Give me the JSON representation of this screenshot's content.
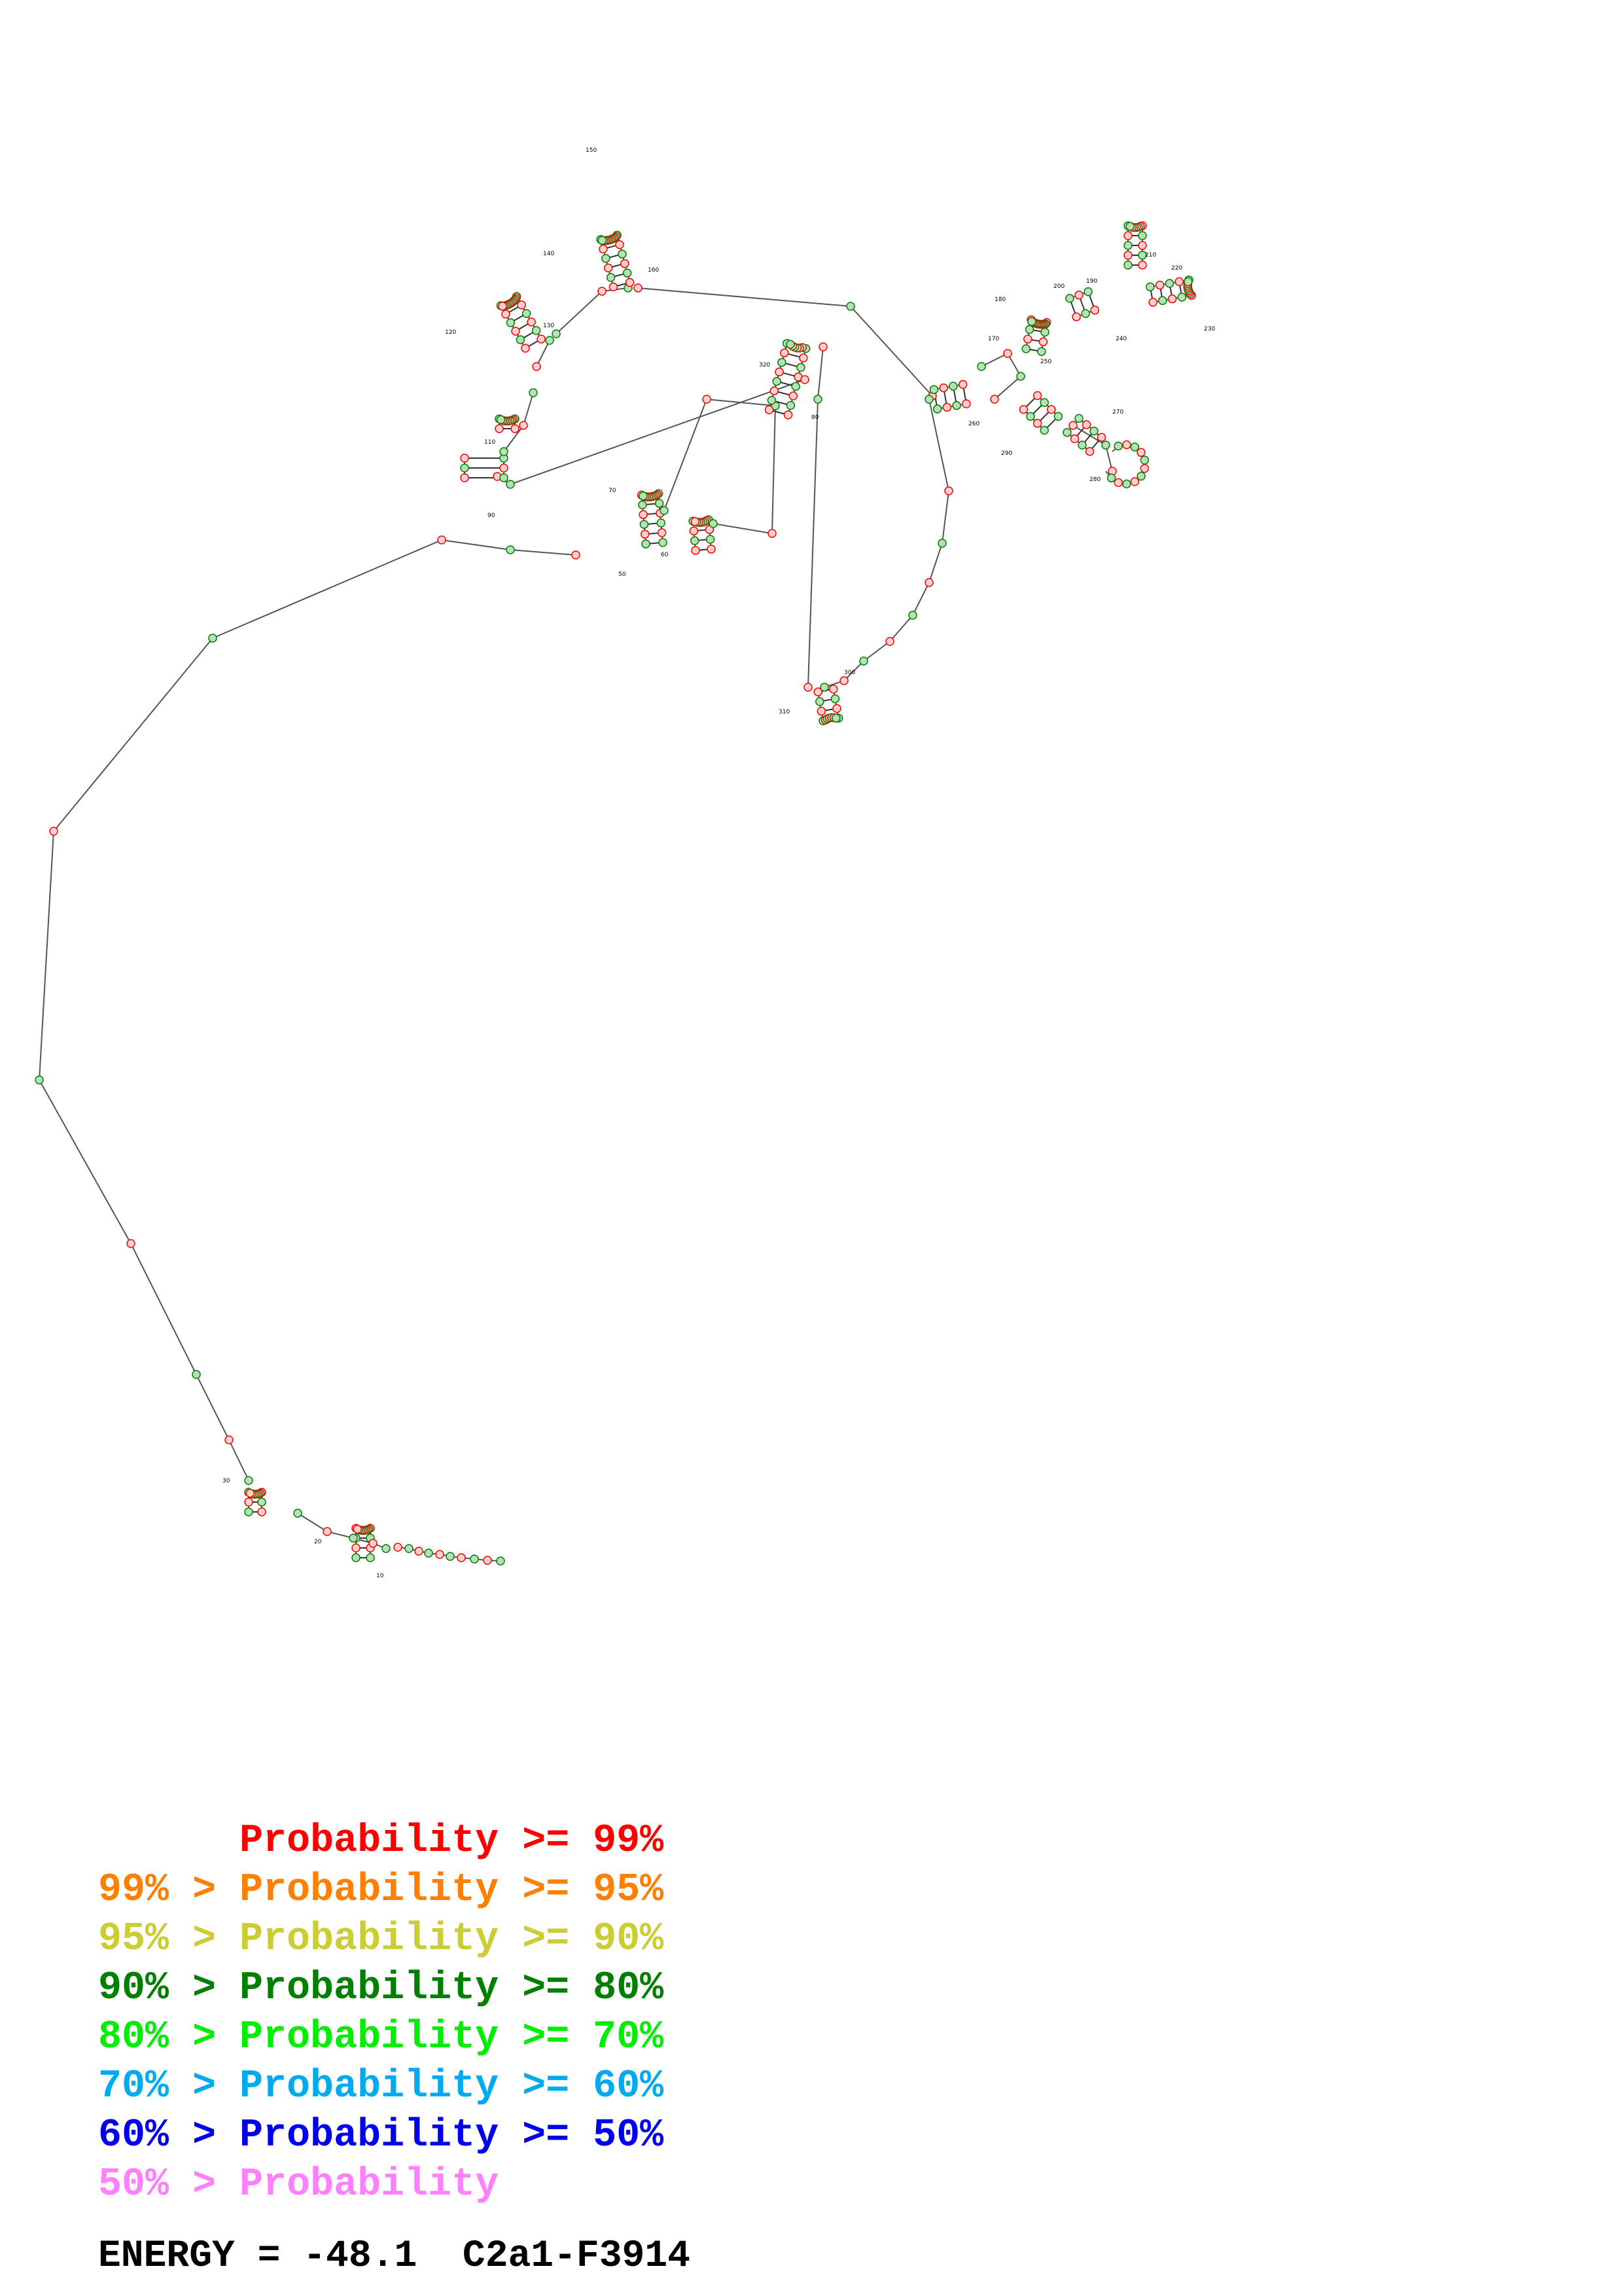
{
  "legend": [
    {
      "text": "      Probability >= 99%",
      "color": "#ff0000"
    },
    {
      "text": "99% > Probability >= 95%",
      "color": "#ff8000"
    },
    {
      "text": "95% > Probability >= 90%",
      "color": "#cccc33"
    },
    {
      "text": "90% > Probability >= 80%",
      "color": "#008000"
    },
    {
      "text": "80% > Probability >= 70%",
      "color": "#00ee00"
    },
    {
      "text": "70% > Probability >= 60%",
      "color": "#00aaee"
    },
    {
      "text": "60% > Probability >= 50%",
      "color": "#0000ee"
    },
    {
      "text": "50% > Probability",
      "color": "#ff80ff"
    }
  ],
  "energy_text": "ENERGY = -48.1  C2a1-F3914",
  "nucleotide_labels": [
    "10",
    "20",
    "30",
    "50",
    "60",
    "70",
    "80",
    "90",
    "110",
    "120",
    "130",
    "140",
    "150",
    "160",
    "170",
    "180",
    "190",
    "200",
    "210",
    "220",
    "230",
    "240",
    "250",
    "260",
    "270",
    "280",
    "290",
    "300",
    "310",
    "320"
  ]
}
